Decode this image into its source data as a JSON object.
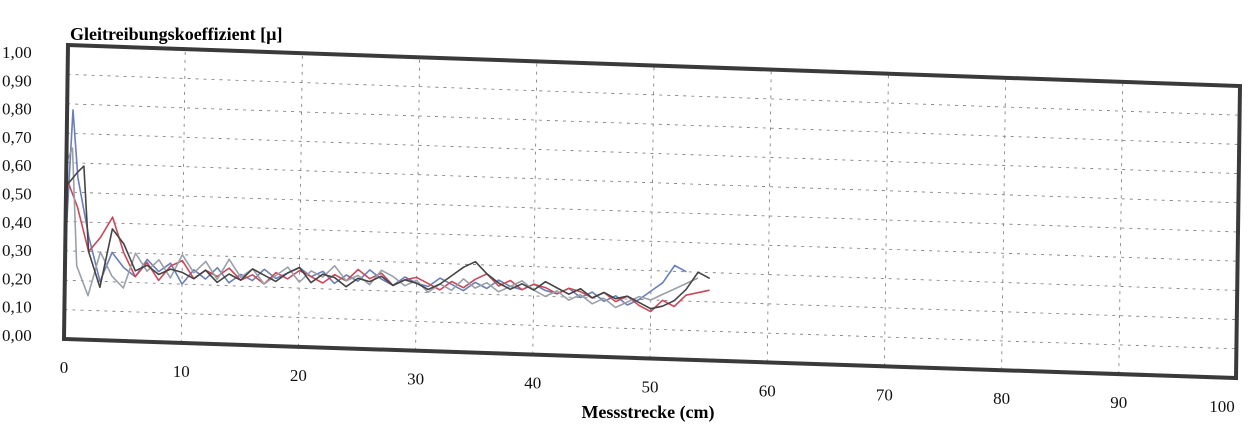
{
  "chart_data": {
    "type": "line",
    "title": "Gleitreibungskoeffizient [µ]",
    "xlabel": "Messstrecke (cm)",
    "ylabel": "",
    "xlim": [
      0,
      100
    ],
    "ylim": [
      0,
      1
    ],
    "x_ticks": [
      "0",
      "10",
      "20",
      "30",
      "40",
      "50",
      "60",
      "70",
      "80",
      "90",
      "100"
    ],
    "y_ticks": [
      "0,00",
      "0,10",
      "0,20",
      "0,30",
      "0,40",
      "0,50",
      "0,60",
      "0,70",
      "0,80",
      "0,90",
      "1,00"
    ],
    "grid": true,
    "series": [
      {
        "color": "#6a7fb8",
        "points": [
          [
            0,
            0.3
          ],
          [
            0.5,
            0.78
          ],
          [
            1,
            0.55
          ],
          [
            2,
            0.35
          ],
          [
            3,
            0.2
          ],
          [
            4,
            0.3
          ],
          [
            5,
            0.25
          ],
          [
            6,
            0.22
          ],
          [
            7,
            0.28
          ],
          [
            8,
            0.24
          ],
          [
            9,
            0.27
          ],
          [
            10,
            0.2
          ],
          [
            11,
            0.25
          ],
          [
            12,
            0.22
          ],
          [
            13,
            0.26
          ],
          [
            14,
            0.21
          ],
          [
            15,
            0.24
          ],
          [
            16,
            0.22
          ],
          [
            17,
            0.26
          ],
          [
            18,
            0.23
          ],
          [
            19,
            0.25
          ],
          [
            20,
            0.27
          ],
          [
            21,
            0.24
          ],
          [
            22,
            0.26
          ],
          [
            23,
            0.22
          ],
          [
            24,
            0.25
          ],
          [
            25,
            0.23
          ],
          [
            26,
            0.27
          ],
          [
            27,
            0.24
          ],
          [
            28,
            0.22
          ],
          [
            29,
            0.25
          ],
          [
            30,
            0.23
          ],
          [
            31,
            0.22
          ],
          [
            32,
            0.25
          ],
          [
            33,
            0.23
          ],
          [
            34,
            0.21
          ],
          [
            35,
            0.24
          ],
          [
            36,
            0.22
          ],
          [
            37,
            0.25
          ],
          [
            38,
            0.23
          ],
          [
            39,
            0.22
          ],
          [
            40,
            0.24
          ],
          [
            41,
            0.22
          ],
          [
            42,
            0.21
          ],
          [
            43,
            0.23
          ],
          [
            44,
            0.2
          ],
          [
            45,
            0.22
          ],
          [
            46,
            0.19
          ],
          [
            47,
            0.21
          ],
          [
            48,
            0.18
          ],
          [
            49,
            0.2
          ],
          [
            50,
            0.23
          ],
          [
            51,
            0.26
          ],
          [
            52,
            0.32
          ],
          [
            53,
            0.3
          ]
        ]
      },
      {
        "color": "#c84a5a",
        "points": [
          [
            0,
            0.55
          ],
          [
            0.5,
            0.5
          ],
          [
            1,
            0.45
          ],
          [
            2,
            0.3
          ],
          [
            3,
            0.35
          ],
          [
            4,
            0.42
          ],
          [
            5,
            0.3
          ],
          [
            6,
            0.22
          ],
          [
            7,
            0.27
          ],
          [
            8,
            0.21
          ],
          [
            9,
            0.26
          ],
          [
            10,
            0.28
          ],
          [
            11,
            0.22
          ],
          [
            12,
            0.25
          ],
          [
            13,
            0.23
          ],
          [
            14,
            0.26
          ],
          [
            15,
            0.22
          ],
          [
            16,
            0.24
          ],
          [
            17,
            0.21
          ],
          [
            18,
            0.25
          ],
          [
            19,
            0.23
          ],
          [
            20,
            0.26
          ],
          [
            21,
            0.24
          ],
          [
            22,
            0.22
          ],
          [
            23,
            0.25
          ],
          [
            24,
            0.23
          ],
          [
            25,
            0.27
          ],
          [
            26,
            0.24
          ],
          [
            27,
            0.26
          ],
          [
            28,
            0.22
          ],
          [
            29,
            0.24
          ],
          [
            30,
            0.25
          ],
          [
            31,
            0.23
          ],
          [
            32,
            0.21
          ],
          [
            33,
            0.24
          ],
          [
            34,
            0.22
          ],
          [
            35,
            0.25
          ],
          [
            36,
            0.27
          ],
          [
            37,
            0.23
          ],
          [
            38,
            0.25
          ],
          [
            39,
            0.22
          ],
          [
            40,
            0.24
          ],
          [
            41,
            0.23
          ],
          [
            42,
            0.21
          ],
          [
            43,
            0.23
          ],
          [
            44,
            0.22
          ],
          [
            45,
            0.2
          ],
          [
            46,
            0.22
          ],
          [
            47,
            0.19
          ],
          [
            48,
            0.21
          ],
          [
            49,
            0.18
          ],
          [
            50,
            0.16
          ],
          [
            51,
            0.2
          ],
          [
            52,
            0.18
          ],
          [
            53,
            0.22
          ],
          [
            54,
            0.23
          ],
          [
            55,
            0.24
          ]
        ]
      },
      {
        "color": "#9aa0a8",
        "points": [
          [
            0,
            0.6
          ],
          [
            0.5,
            0.65
          ],
          [
            1,
            0.25
          ],
          [
            2,
            0.15
          ],
          [
            3,
            0.3
          ],
          [
            4,
            0.22
          ],
          [
            5,
            0.18
          ],
          [
            6,
            0.3
          ],
          [
            7,
            0.24
          ],
          [
            8,
            0.28
          ],
          [
            9,
            0.22
          ],
          [
            10,
            0.3
          ],
          [
            11,
            0.24
          ],
          [
            12,
            0.28
          ],
          [
            13,
            0.22
          ],
          [
            14,
            0.29
          ],
          [
            15,
            0.23
          ],
          [
            16,
            0.26
          ],
          [
            17,
            0.21
          ],
          [
            18,
            0.24
          ],
          [
            19,
            0.27
          ],
          [
            20,
            0.22
          ],
          [
            21,
            0.26
          ],
          [
            22,
            0.24
          ],
          [
            23,
            0.28
          ],
          [
            24,
            0.23
          ],
          [
            25,
            0.25
          ],
          [
            26,
            0.22
          ],
          [
            27,
            0.27
          ],
          [
            28,
            0.25
          ],
          [
            29,
            0.22
          ],
          [
            30,
            0.24
          ],
          [
            31,
            0.2
          ],
          [
            32,
            0.23
          ],
          [
            33,
            0.21
          ],
          [
            34,
            0.25
          ],
          [
            35,
            0.22
          ],
          [
            36,
            0.24
          ],
          [
            37,
            0.21
          ],
          [
            38,
            0.23
          ],
          [
            39,
            0.25
          ],
          [
            40,
            0.22
          ],
          [
            41,
            0.2
          ],
          [
            42,
            0.22
          ],
          [
            43,
            0.19
          ],
          [
            44,
            0.21
          ],
          [
            45,
            0.18
          ],
          [
            46,
            0.2
          ],
          [
            47,
            0.17
          ],
          [
            48,
            0.19
          ],
          [
            49,
            0.21
          ],
          [
            50,
            0.2
          ],
          [
            51,
            0.22
          ],
          [
            52,
            0.24
          ],
          [
            53,
            0.26
          ],
          [
            54,
            0.28
          ]
        ]
      },
      {
        "color": "#444444",
        "points": [
          [
            0,
            0.52
          ],
          [
            1,
            0.57
          ],
          [
            1.5,
            0.59
          ],
          [
            2,
            0.3
          ],
          [
            3,
            0.18
          ],
          [
            4,
            0.38
          ],
          [
            5,
            0.33
          ],
          [
            6,
            0.24
          ],
          [
            7,
            0.26
          ],
          [
            8,
            0.23
          ],
          [
            9,
            0.25
          ],
          [
            10,
            0.24
          ],
          [
            11,
            0.22
          ],
          [
            12,
            0.25
          ],
          [
            13,
            0.21
          ],
          [
            14,
            0.24
          ],
          [
            15,
            0.22
          ],
          [
            16,
            0.26
          ],
          [
            17,
            0.24
          ],
          [
            18,
            0.22
          ],
          [
            19,
            0.25
          ],
          [
            20,
            0.27
          ],
          [
            21,
            0.22
          ],
          [
            22,
            0.25
          ],
          [
            23,
            0.24
          ],
          [
            24,
            0.21
          ],
          [
            25,
            0.24
          ],
          [
            26,
            0.23
          ],
          [
            27,
            0.25
          ],
          [
            28,
            0.22
          ],
          [
            29,
            0.24
          ],
          [
            30,
            0.23
          ],
          [
            31,
            0.21
          ],
          [
            32,
            0.23
          ],
          [
            33,
            0.26
          ],
          [
            34,
            0.29
          ],
          [
            35,
            0.31
          ],
          [
            36,
            0.27
          ],
          [
            37,
            0.24
          ],
          [
            38,
            0.22
          ],
          [
            39,
            0.24
          ],
          [
            40,
            0.22
          ],
          [
            41,
            0.25
          ],
          [
            42,
            0.23
          ],
          [
            43,
            0.21
          ],
          [
            44,
            0.23
          ],
          [
            45,
            0.2
          ],
          [
            46,
            0.22
          ],
          [
            47,
            0.2
          ],
          [
            48,
            0.21
          ],
          [
            49,
            0.19
          ],
          [
            50,
            0.17
          ],
          [
            51,
            0.18
          ],
          [
            52,
            0.2
          ],
          [
            53,
            0.24
          ],
          [
            54,
            0.3
          ],
          [
            55,
            0.28
          ]
        ]
      }
    ]
  }
}
